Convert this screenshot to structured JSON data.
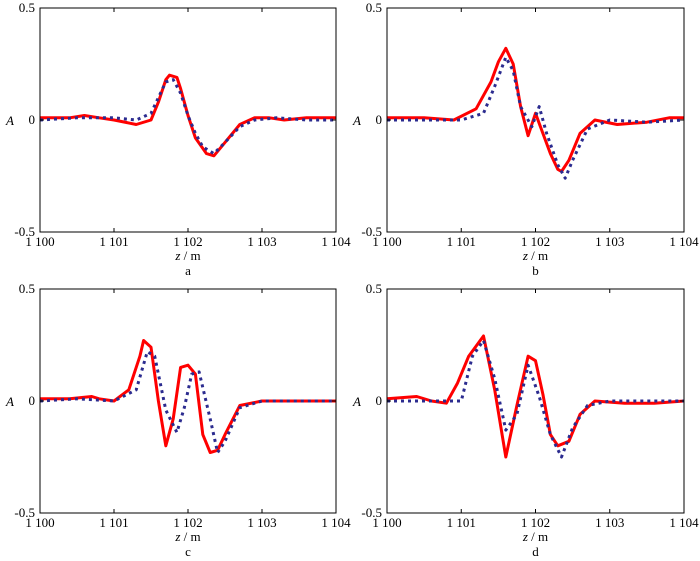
{
  "chart_data": [
    {
      "type": "line",
      "panel_label": "a",
      "xlabel_var": "z",
      "xlabel_unit": " / m",
      "ylabel": "A",
      "xlim": [
        1100,
        1104
      ],
      "ylim": [
        -0.5,
        0.5
      ],
      "xticks": [
        1100,
        1101,
        1102,
        1103,
        1104
      ],
      "xtick_labels": [
        "1 100",
        "1 101",
        "1 102",
        "1 103",
        "1 104"
      ],
      "yticks": [
        -0.5,
        0,
        0.5
      ],
      "ytick_labels": [
        "-0.5",
        "0",
        "0.5"
      ],
      "series": [
        {
          "color": "#ff0000",
          "style": "solid",
          "x": [
            1100,
            1100.4,
            1100.6,
            1100.8,
            1101,
            1101.3,
            1101.5,
            1101.6,
            1101.7,
            1101.75,
            1101.85,
            1101.9,
            1102,
            1102.1,
            1102.25,
            1102.35,
            1102.5,
            1102.7,
            1102.9,
            1103.1,
            1103.3,
            1103.6,
            1103.8,
            1104
          ],
          "y": [
            0.01,
            0.01,
            0.02,
            0.01,
            0.0,
            -0.02,
            0.0,
            0.08,
            0.18,
            0.2,
            0.19,
            0.14,
            0.02,
            -0.08,
            -0.15,
            -0.16,
            -0.1,
            -0.02,
            0.01,
            0.01,
            0.0,
            0.01,
            0.01,
            0.01
          ]
        },
        {
          "color": "#2b2b8f",
          "style": "dotted",
          "x": [
            1100,
            1100.5,
            1101,
            1101.3,
            1101.5,
            1101.6,
            1101.7,
            1101.8,
            1101.9,
            1102,
            1102.1,
            1102.2,
            1102.35,
            1102.5,
            1102.7,
            1102.9,
            1103.2,
            1103.6,
            1104
          ],
          "y": [
            0.0,
            0.01,
            0.01,
            0.0,
            0.03,
            0.1,
            0.17,
            0.18,
            0.12,
            0.02,
            -0.06,
            -0.12,
            -0.15,
            -0.1,
            -0.03,
            0.0,
            0.01,
            0.0,
            0.0
          ]
        }
      ]
    },
    {
      "type": "line",
      "panel_label": "b",
      "xlabel_var": "z",
      "xlabel_unit": " / m",
      "ylabel": "A",
      "xlim": [
        1100,
        1104
      ],
      "ylim": [
        -0.5,
        0.5
      ],
      "xticks": [
        1100,
        1101,
        1102,
        1103,
        1104
      ],
      "xtick_labels": [
        "1 100",
        "1 101",
        "1 102",
        "1 103",
        "1 104"
      ],
      "yticks": [
        -0.5,
        0,
        0.5
      ],
      "ytick_labels": [
        "-0.5",
        "0",
        "0.5"
      ],
      "series": [
        {
          "color": "#ff0000",
          "style": "solid",
          "x": [
            1100,
            1100.5,
            1100.9,
            1101.2,
            1101.4,
            1101.5,
            1101.6,
            1101.7,
            1101.8,
            1101.9,
            1102,
            1102.1,
            1102.2,
            1102.3,
            1102.35,
            1102.45,
            1102.6,
            1102.8,
            1103.1,
            1103.5,
            1103.8,
            1104
          ],
          "y": [
            0.01,
            0.01,
            0.0,
            0.05,
            0.17,
            0.26,
            0.32,
            0.25,
            0.06,
            -0.07,
            0.03,
            -0.06,
            -0.15,
            -0.22,
            -0.23,
            -0.18,
            -0.06,
            0.0,
            -0.02,
            -0.01,
            0.01,
            0.01
          ]
        },
        {
          "color": "#2b2b8f",
          "style": "dotted",
          "x": [
            1100,
            1100.6,
            1101,
            1101.3,
            1101.45,
            1101.6,
            1101.7,
            1101.8,
            1101.95,
            1102.05,
            1102.15,
            1102.3,
            1102.4,
            1102.5,
            1102.7,
            1103,
            1103.5,
            1104
          ],
          "y": [
            0.0,
            0.0,
            0.0,
            0.03,
            0.15,
            0.28,
            0.22,
            0.06,
            -0.03,
            0.06,
            -0.06,
            -0.2,
            -0.26,
            -0.18,
            -0.04,
            0.0,
            -0.01,
            0.0
          ]
        }
      ]
    },
    {
      "type": "line",
      "panel_label": "c",
      "xlabel_var": "z",
      "xlabel_unit": " / m",
      "ylabel": "A",
      "xlim": [
        1100,
        1104
      ],
      "ylim": [
        -0.5,
        0.5
      ],
      "xticks": [
        1100,
        1101,
        1102,
        1103,
        1104
      ],
      "xtick_labels": [
        "1 100",
        "1 101",
        "1 102",
        "1 103",
        "1 104"
      ],
      "yticks": [
        -0.5,
        0,
        0.5
      ],
      "ytick_labels": [
        "-0.5",
        "0",
        "0.5"
      ],
      "series": [
        {
          "color": "#ff0000",
          "style": "solid",
          "x": [
            1100,
            1100.4,
            1100.7,
            1100.8,
            1101,
            1101.2,
            1101.35,
            1101.4,
            1101.5,
            1101.6,
            1101.7,
            1101.8,
            1101.9,
            1102,
            1102.1,
            1102.2,
            1102.3,
            1102.4,
            1102.5,
            1102.7,
            1103,
            1103.4,
            1103.8,
            1104
          ],
          "y": [
            0.01,
            0.01,
            0.02,
            0.01,
            0.0,
            0.05,
            0.2,
            0.27,
            0.24,
            0.0,
            -0.2,
            -0.08,
            0.15,
            0.16,
            0.12,
            -0.15,
            -0.23,
            -0.22,
            -0.15,
            -0.02,
            0.0,
            0.0,
            0.0,
            0.0
          ]
        },
        {
          "color": "#2b2b8f",
          "style": "dotted",
          "x": [
            1100,
            1100.5,
            1101,
            1101.3,
            1101.45,
            1101.55,
            1101.7,
            1101.85,
            1101.95,
            1102.05,
            1102.15,
            1102.3,
            1102.4,
            1102.5,
            1102.7,
            1103,
            1103.5,
            1104
          ],
          "y": [
            0.0,
            0.01,
            0.0,
            0.05,
            0.22,
            0.2,
            -0.04,
            -0.14,
            -0.03,
            0.12,
            0.13,
            -0.08,
            -0.23,
            -0.18,
            -0.03,
            0.0,
            0.0,
            0.0
          ]
        }
      ]
    },
    {
      "type": "line",
      "panel_label": "d",
      "xlabel_var": "z",
      "xlabel_unit": " / m",
      "ylabel": "A",
      "xlim": [
        1100,
        1104
      ],
      "ylim": [
        -0.5,
        0.5
      ],
      "xticks": [
        1100,
        1101,
        1102,
        1103,
        1104
      ],
      "xtick_labels": [
        "1 100",
        "1 101",
        "1 102",
        "1 103",
        "1 104"
      ],
      "yticks": [
        -0.5,
        0,
        0.5
      ],
      "ytick_labels": [
        "-0.5",
        "0",
        "0.5"
      ],
      "series": [
        {
          "color": "#ff0000",
          "style": "solid",
          "x": [
            1100,
            1100.4,
            1100.6,
            1100.8,
            1100.95,
            1101.1,
            1101.3,
            1101.45,
            1101.6,
            1101.75,
            1101.9,
            1102,
            1102.1,
            1102.2,
            1102.3,
            1102.45,
            1102.6,
            1102.8,
            1103.2,
            1103.6,
            1104
          ],
          "y": [
            0.01,
            0.02,
            0.0,
            -0.01,
            0.08,
            0.2,
            0.29,
            0.05,
            -0.25,
            -0.02,
            0.2,
            0.18,
            0.03,
            -0.15,
            -0.2,
            -0.18,
            -0.06,
            0.0,
            -0.01,
            -0.01,
            0.0
          ]
        },
        {
          "color": "#2b2b8f",
          "style": "dotted",
          "x": [
            1100,
            1100.6,
            1101,
            1101.15,
            1101.3,
            1101.45,
            1101.6,
            1101.75,
            1101.9,
            1102.05,
            1102.2,
            1102.35,
            1102.5,
            1102.7,
            1103,
            1103.5,
            1104
          ],
          "y": [
            0.0,
            0.0,
            0.0,
            0.2,
            0.27,
            0.1,
            -0.13,
            -0.06,
            0.16,
            0.02,
            -0.15,
            -0.25,
            -0.12,
            -0.02,
            0.0,
            0.0,
            0.0
          ]
        }
      ]
    }
  ]
}
